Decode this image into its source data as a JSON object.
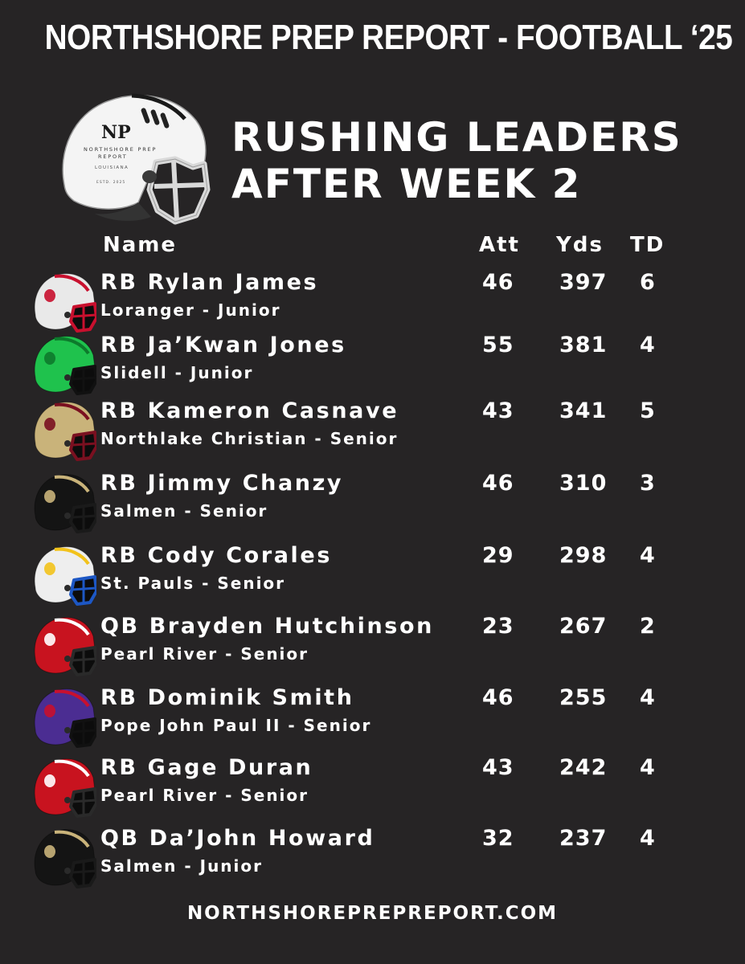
{
  "header": {
    "title": "NORTHSHORE PREP REPORT - FOOTBALL ‘25"
  },
  "logo": {
    "initials": "NP",
    "name_line1": "NORTHSHORE PREP",
    "name_line2": "REPORT",
    "region": "LOUISIANA",
    "established": "ESTD. 2025"
  },
  "headline": {
    "line1": "RUSHING LEADERS",
    "line2": "AFTER WEEK 2"
  },
  "columns": {
    "name": "Name",
    "att": "Att",
    "yds": "Yds",
    "td": "TD"
  },
  "players": [
    {
      "name": "RB Rylan James",
      "school": "Loranger - Junior",
      "att": "46",
      "yds": "397",
      "td": "6",
      "helmet": {
        "shell": "#e9e9e9",
        "mask": "#c8102e",
        "accent": "#c8102e"
      }
    },
    {
      "name": "RB Ja’Kwan Jones",
      "school": "Slidell - Junior",
      "att": "55",
      "yds": "381",
      "td": "4",
      "helmet": {
        "shell": "#1fc24d",
        "mask": "#111111",
        "accent": "#0d7a2c"
      }
    },
    {
      "name": "RB Kameron Casnave",
      "school": "Northlake Christian - Senior",
      "att": "43",
      "yds": "341",
      "td": "5",
      "helmet": {
        "shell": "#c9b37a",
        "mask": "#7a1020",
        "accent": "#7a1020"
      }
    },
    {
      "name": "RB Jimmy Chanzy",
      "school": "Salmen - Senior",
      "att": "46",
      "yds": "310",
      "td": "3",
      "helmet": {
        "shell": "#141414",
        "mask": "#1a1a1a",
        "accent": "#c9b37a"
      }
    },
    {
      "name": "RB Cody Corales",
      "school": "St. Pauls - Senior",
      "att": "29",
      "yds": "298",
      "td": "4",
      "helmet": {
        "shell": "#eeeeee",
        "mask": "#1d57c4",
        "accent": "#f2c21b"
      }
    },
    {
      "name": "QB Brayden Hutchinson",
      "school": "Pearl River - Senior",
      "att": "23",
      "yds": "267",
      "td": "2",
      "helmet": {
        "shell": "#c8131f",
        "mask": "#2a2a2a",
        "accent": "#ffffff"
      }
    },
    {
      "name": "RB Dominik Smith",
      "school": "Pope John Paul II - Senior",
      "att": "46",
      "yds": "255",
      "td": "4",
      "helmet": {
        "shell": "#4b2d92",
        "mask": "#111111",
        "accent": "#c8102e"
      }
    },
    {
      "name": "RB Gage Duran",
      "school": "Pearl River - Senior",
      "att": "43",
      "yds": "242",
      "td": "4",
      "helmet": {
        "shell": "#c8131f",
        "mask": "#2a2a2a",
        "accent": "#ffffff"
      }
    },
    {
      "name": "QB Da’John Howard",
      "school": "Salmen - Junior",
      "att": "32",
      "yds": "237",
      "td": "4",
      "helmet": {
        "shell": "#141414",
        "mask": "#1a1a1a",
        "accent": "#c9b37a"
      }
    }
  ],
  "footer": {
    "url": "NORTHSHOREPREPREPORT.COM"
  }
}
